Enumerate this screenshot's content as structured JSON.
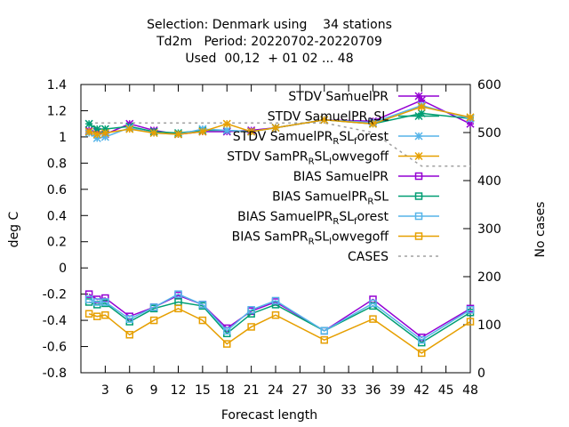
{
  "chart_data": {
    "type": "line",
    "title_lines": [
      "Selection: Denmark using    34 stations",
      "Td2m   Period: 20220702-20220709",
      "Used  00,12  + 01 02 ... 48"
    ],
    "xlabel": "Forecast length",
    "ylabel": "deg C",
    "y2label": "No cases",
    "xlim": [
      0,
      48
    ],
    "ylim": [
      -0.8,
      1.4
    ],
    "y2lim": [
      0,
      600
    ],
    "xticks": [
      3,
      6,
      9,
      12,
      15,
      18,
      21,
      24,
      27,
      30,
      33,
      36,
      39,
      42,
      45,
      48
    ],
    "yticks": [
      -0.8,
      -0.6,
      -0.4,
      -0.2,
      0,
      0.2,
      0.4,
      0.6,
      0.8,
      1,
      1.2,
      1.4
    ],
    "ytick_labels": [
      "-0.8",
      "-0.6",
      "-0.4",
      "-0.2",
      "0",
      "0.2",
      "0.4",
      "0.6",
      "0.8",
      "1",
      "1.2",
      "1.4"
    ],
    "y2ticks": [
      0,
      100,
      200,
      300,
      400,
      500,
      600
    ],
    "y2tick_labels": [
      "0",
      "100",
      "200",
      "300",
      "400",
      "500",
      "600"
    ],
    "grid": false,
    "legend_position": "top-right",
    "x": [
      1,
      2,
      3,
      6,
      9,
      12,
      15,
      18,
      21,
      24,
      30,
      36,
      42,
      48
    ],
    "series": [
      {
        "name": "STDV SamuelPR",
        "name_parts": [
          [
            "STDV SamuelPR",
            ""
          ]
        ],
        "color": "#9400d3",
        "marker": "x",
        "values": [
          1.05,
          1.04,
          1.02,
          1.1,
          1.05,
          1.02,
          1.04,
          1.04,
          1.05,
          1.07,
          1.13,
          1.12,
          1.28,
          1.1
        ]
      },
      {
        "name": "STDV SamuelPR_RSL",
        "name_parts": [
          [
            "STDV SamuelPR",
            ""
          ],
          [
            "R",
            "sub"
          ],
          [
            "SL",
            ""
          ]
        ],
        "color": "#009e73",
        "marker": "x",
        "values": [
          1.1,
          1.06,
          1.06,
          1.08,
          1.04,
          1.03,
          1.05,
          1.05,
          1.04,
          1.07,
          1.13,
          1.1,
          1.18,
          1.14
        ]
      },
      {
        "name": "STDV SamuelPR_RSL_forest",
        "name_parts": [
          [
            "STDV SamuelPR",
            ""
          ],
          [
            "R",
            "sub"
          ],
          [
            "SL",
            ""
          ],
          [
            "f",
            "sub"
          ],
          [
            "orest",
            ""
          ]
        ],
        "color": "#56b4e9",
        "marker": "x",
        "values": [
          1.03,
          0.99,
          1.0,
          1.07,
          1.03,
          1.02,
          1.06,
          1.05,
          1.04,
          1.07,
          1.13,
          1.11,
          1.24,
          1.14
        ]
      },
      {
        "name": "STDV SamPR_RSL_lowvegoff",
        "name_parts": [
          [
            "STDV SamPR",
            ""
          ],
          [
            "R",
            "sub"
          ],
          [
            "SL",
            ""
          ],
          [
            "l",
            "sub"
          ],
          [
            "owvegoff",
            ""
          ]
        ],
        "color": "#e69f00",
        "marker": "x",
        "values": [
          1.04,
          1.02,
          1.03,
          1.06,
          1.03,
          1.02,
          1.04,
          1.1,
          1.04,
          1.07,
          1.13,
          1.1,
          1.23,
          1.15
        ]
      },
      {
        "name": "BIAS SamuelPR",
        "name_parts": [
          [
            "BIAS SamuelPR",
            ""
          ]
        ],
        "color": "#9400d3",
        "marker": "sq",
        "values": [
          -0.2,
          -0.24,
          -0.23,
          -0.37,
          -0.3,
          -0.21,
          -0.28,
          -0.46,
          -0.33,
          -0.26,
          -0.48,
          -0.24,
          -0.53,
          -0.31
        ]
      },
      {
        "name": "BIAS SamuelPR_RSL",
        "name_parts": [
          [
            "BIAS SamuelPR",
            ""
          ],
          [
            "R",
            "sub"
          ],
          [
            "SL",
            ""
          ]
        ],
        "color": "#009e73",
        "marker": "sq",
        "values": [
          -0.26,
          -0.28,
          -0.27,
          -0.41,
          -0.31,
          -0.26,
          -0.29,
          -0.5,
          -0.35,
          -0.28,
          -0.48,
          -0.29,
          -0.57,
          -0.34
        ]
      },
      {
        "name": "BIAS SamuelPR_RSL_forest",
        "name_parts": [
          [
            "BIAS SamuelPR",
            ""
          ],
          [
            "R",
            "sub"
          ],
          [
            "SL",
            ""
          ],
          [
            "f",
            "sub"
          ],
          [
            "orest",
            ""
          ]
        ],
        "color": "#56b4e9",
        "marker": "sq",
        "values": [
          -0.24,
          -0.26,
          -0.26,
          -0.39,
          -0.3,
          -0.2,
          -0.28,
          -0.48,
          -0.32,
          -0.25,
          -0.48,
          -0.27,
          -0.55,
          -0.32
        ]
      },
      {
        "name": "BIAS SamPR_RSL_lowvegoff",
        "name_parts": [
          [
            "BIAS SamPR",
            ""
          ],
          [
            "R",
            "sub"
          ],
          [
            "SL",
            ""
          ],
          [
            "l",
            "sub"
          ],
          [
            "owvegoff",
            ""
          ]
        ],
        "color": "#e69f00",
        "marker": "sq",
        "values": [
          -0.35,
          -0.37,
          -0.36,
          -0.51,
          -0.4,
          -0.31,
          -0.4,
          -0.58,
          -0.45,
          -0.36,
          -0.55,
          -0.39,
          -0.65,
          -0.41
        ]
      }
    ],
    "cases": {
      "name": "CASES",
      "name_parts": [
        [
          "CASES",
          ""
        ]
      ],
      "color": "#a0a0a0",
      "marker": "none",
      "axis": "y2",
      "values": [
        520,
        520,
        520,
        520,
        520,
        520,
        520,
        520,
        520,
        520,
        520,
        500,
        430,
        430
      ]
    }
  }
}
